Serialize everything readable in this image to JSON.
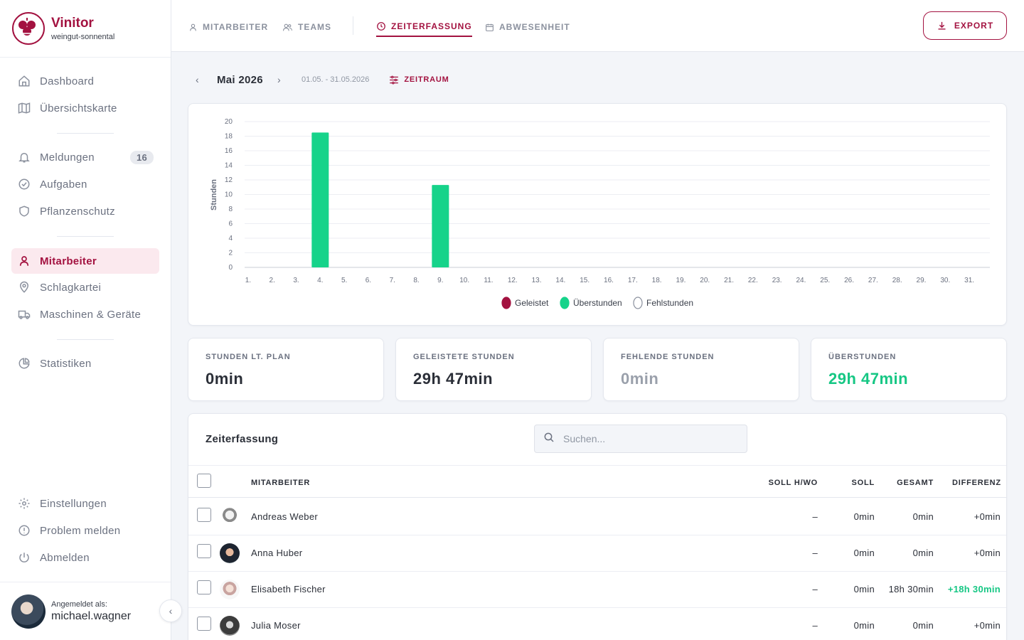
{
  "brand": {
    "name": "Vinitor",
    "org": "weingut-sonnental"
  },
  "sidebar": {
    "items": [
      {
        "label": "Dashboard",
        "icon": "home-icon"
      },
      {
        "label": "Übersichtskarte",
        "icon": "map-icon"
      },
      {
        "label": "Meldungen",
        "icon": "bell-icon",
        "badge": "16"
      },
      {
        "label": "Aufgaben",
        "icon": "check-circle-icon"
      },
      {
        "label": "Pflanzenschutz",
        "icon": "shield-icon"
      },
      {
        "label": "Mitarbeiter",
        "icon": "user-icon",
        "active": true
      },
      {
        "label": "Schlagkartei",
        "icon": "map-pin-icon"
      },
      {
        "label": "Maschinen & Geräte",
        "icon": "truck-icon"
      },
      {
        "label": "Statistiken",
        "icon": "pie-chart-icon"
      }
    ],
    "bottom_items": [
      {
        "label": "Einstellungen",
        "icon": "gear-icon"
      },
      {
        "label": "Problem melden",
        "icon": "alert-icon"
      },
      {
        "label": "Abmelden",
        "icon": "power-icon"
      }
    ],
    "user": {
      "label": "Angemeldet als:",
      "name": "michael.wagner"
    }
  },
  "tabs": [
    {
      "label": "MITARBEITER",
      "icon": "user-icon"
    },
    {
      "label": "TEAMS",
      "icon": "users-icon"
    },
    {
      "label": "ZEITERFASSUNG",
      "icon": "clock-icon",
      "active": true
    },
    {
      "label": "ABWESENHEIT",
      "icon": "calendar-icon"
    }
  ],
  "export_label": "EXPORT",
  "period": {
    "title": "Mai 2026",
    "range": "01.05. - 31.05.2026",
    "button": "ZEITRAUM"
  },
  "chart_data": {
    "type": "bar",
    "ylabel": "Stunden",
    "ylim": [
      0,
      20
    ],
    "yticks": [
      0,
      2,
      4,
      6,
      8,
      10,
      12,
      14,
      16,
      18,
      20
    ],
    "categories": [
      "1.",
      "2.",
      "3.",
      "4.",
      "5.",
      "6.",
      "7.",
      "8.",
      "9.",
      "10.",
      "11.",
      "12.",
      "13.",
      "14.",
      "15.",
      "16.",
      "17.",
      "18.",
      "19.",
      "20.",
      "21.",
      "22.",
      "23.",
      "24.",
      "25.",
      "26.",
      "27.",
      "28.",
      "29.",
      "30.",
      "31."
    ],
    "series": [
      {
        "name": "Geleistet",
        "color": "#a31240",
        "values": [
          0,
          0,
          0,
          0,
          0,
          0,
          0,
          0,
          0,
          0,
          0,
          0,
          0,
          0,
          0,
          0,
          0,
          0,
          0,
          0,
          0,
          0,
          0,
          0,
          0,
          0,
          0,
          0,
          0,
          0,
          0
        ]
      },
      {
        "name": "Überstunden",
        "color": "#16d38a",
        "values": [
          0,
          0,
          0,
          18.5,
          0,
          0,
          0,
          0,
          11.3,
          0,
          0,
          0,
          0,
          0,
          0,
          0,
          0,
          0,
          0,
          0,
          0,
          0,
          0,
          0,
          0,
          0,
          0,
          0,
          0,
          0,
          0
        ]
      },
      {
        "name": "Fehlstunden",
        "color": "#ffffff",
        "values": [
          0,
          0,
          0,
          0,
          0,
          0,
          0,
          0,
          0,
          0,
          0,
          0,
          0,
          0,
          0,
          0,
          0,
          0,
          0,
          0,
          0,
          0,
          0,
          0,
          0,
          0,
          0,
          0,
          0,
          0,
          0
        ]
      }
    ],
    "legend": "bottom-center",
    "grid": true
  },
  "stats": [
    {
      "label": "STUNDEN LT. PLAN",
      "value": "0min",
      "color": "#2b2f38"
    },
    {
      "label": "GELEISTETE STUNDEN",
      "value": "29h 47min",
      "color": "#2b2f38"
    },
    {
      "label": "FEHLENDE STUNDEN",
      "value": "0min",
      "color": "#9aa0ab"
    },
    {
      "label": "ÜBERSTUNDEN",
      "value": "29h 47min",
      "color": "#16c784"
    }
  ],
  "table": {
    "title": "Zeiterfassung",
    "search_placeholder": "Suchen...",
    "columns": [
      "MITARBEITER",
      "SOLL H/WO",
      "SOLL",
      "GESAMT",
      "DIFFERENZ"
    ],
    "rows": [
      {
        "name": "Andreas Weber",
        "soll_hwo": "–",
        "soll": "0min",
        "gesamt": "0min",
        "differenz": "+0min",
        "positive": false
      },
      {
        "name": "Anna Huber",
        "soll_hwo": "–",
        "soll": "0min",
        "gesamt": "0min",
        "differenz": "+0min",
        "positive": false
      },
      {
        "name": "Elisabeth Fischer",
        "soll_hwo": "–",
        "soll": "0min",
        "gesamt": "18h 30min",
        "differenz": "+18h 30min",
        "positive": true
      },
      {
        "name": "Julia Moser",
        "soll_hwo": "–",
        "soll": "0min",
        "gesamt": "0min",
        "differenz": "+0min",
        "positive": false
      }
    ]
  }
}
